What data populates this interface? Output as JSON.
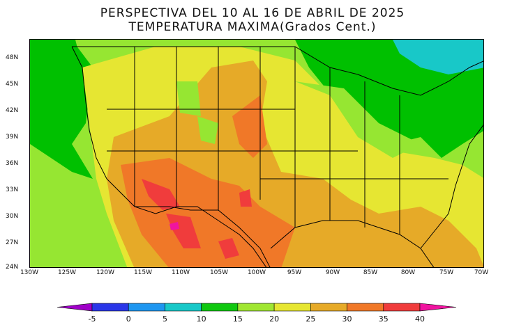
{
  "title": {
    "line1": "PERSPECTIVA DEL 10 AL 16 DE ABRIL DE 2025",
    "line2": "TEMPERATURA MAXIMA(Grados Cent.)"
  },
  "lat_labels": [
    "48N",
    "45N",
    "42N",
    "39N",
    "36N",
    "33N",
    "30N",
    "27N",
    "24N"
  ],
  "lon_labels": [
    "130W",
    "125W",
    "120W",
    "115W",
    "110W",
    "105W",
    "100W",
    "95W",
    "90W",
    "85W",
    "80W",
    "75W",
    "70W"
  ],
  "colorbar": {
    "tick_labels": [
      "-5",
      "0",
      "5",
      "10",
      "15",
      "20",
      "25",
      "30",
      "35",
      "40"
    ],
    "colors": [
      "#a000c8",
      "#2a36e8",
      "#1e96f0",
      "#18c8c8",
      "#10c810",
      "#a0e632",
      "#e6e632",
      "#e6aa28",
      "#f07828",
      "#f03c3c",
      "#f014a0"
    ]
  },
  "map_colors": {
    "ocean_green": "#00c000",
    "light_green": "#96e632",
    "yellow": "#e6e632",
    "orange_light": "#e6aa28",
    "orange": "#f07828",
    "red": "#f03c3c",
    "cyan": "#18c8c8",
    "magenta": "#f014a0"
  }
}
